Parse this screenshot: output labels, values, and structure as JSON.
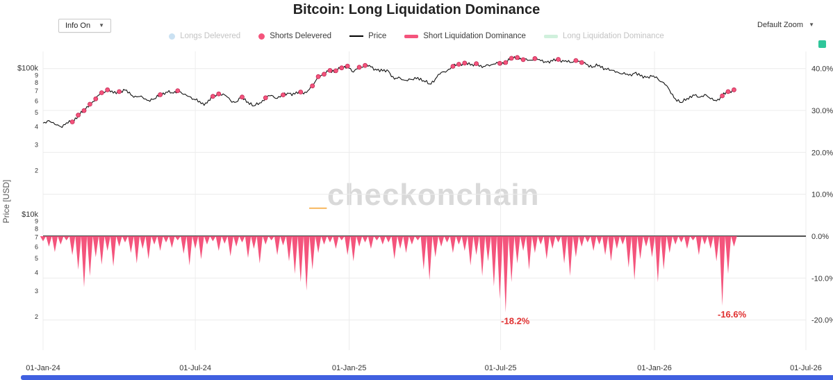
{
  "title": "Bitcoin: Long Liquidation Dominance",
  "controls": {
    "info_label": "Info On",
    "zoom_label": "Default Zoom",
    "caret": "▼"
  },
  "watermark": {
    "prefix": "_",
    "text": "checkonchain"
  },
  "colors": {
    "accent_pink": "#f4547c",
    "price_line": "#111111",
    "annotation_red": "#e02f2f",
    "longs_blue": "#9ec9e8",
    "long_dom_green": "#a9e3bf",
    "range_slider_blue": "#4060e0",
    "watermark_gray": "#d9d9d9",
    "watermark_orange": "#f5a83b",
    "brand_teal": "#2fc69a",
    "gridline": "#ececec"
  },
  "legend": {
    "items": [
      {
        "label": "Longs Delevered",
        "glyph": "dot",
        "color": "#9ec9e8",
        "enabled": false
      },
      {
        "label": "Shorts Delevered",
        "glyph": "dot",
        "color": "#f4547c",
        "enabled": true
      },
      {
        "label": "Price",
        "glyph": "line",
        "color": "#000000",
        "enabled": true
      },
      {
        "label": "Short Liquidation Dominance",
        "glyph": "thick-line",
        "color": "#f4547c",
        "enabled": true
      },
      {
        "label": "Long Liquidation Dominance",
        "glyph": "thick-line",
        "color": "#a9e3bf",
        "enabled": false
      }
    ]
  },
  "chart_data": {
    "type": "line",
    "title": "Bitcoin: Long Liquidation Dominance",
    "x_start": "2024-01-01",
    "x_interval_days": 7,
    "x_axis": {
      "span_days": 912,
      "tick_days": [
        0,
        182,
        366,
        547,
        731,
        912
      ],
      "tick_labels": [
        "01-Jan-24",
        "01-Jul-24",
        "01-Jan-25",
        "01-Jul-25",
        "01-Jan-26",
        "01-Jul-26"
      ]
    },
    "left_axis": {
      "label": "Price [USD]",
      "scale": "log",
      "domain_usd": [
        1180,
        131000
      ],
      "tick_values_kusd": [
        100,
        90,
        80,
        70,
        60,
        50,
        40,
        30,
        20,
        10,
        9,
        8,
        7,
        6,
        5,
        4,
        3,
        2
      ],
      "tick_labels": [
        "$100k",
        "9",
        "8",
        "7",
        "6",
        "5",
        "4",
        "3",
        "2",
        "$10k",
        "9",
        "8",
        "7",
        "6",
        "5",
        "4",
        "3",
        "2"
      ]
    },
    "right_axis": {
      "domain": [
        -27.2,
        44.1
      ],
      "tick_values": [
        40,
        30,
        20,
        10,
        0,
        -10,
        -20
      ],
      "tick_labels": [
        "40.0%",
        "30.0%",
        "20.0%",
        "10.0%",
        "0.0%",
        "-10.0%",
        "-20.0%"
      ]
    },
    "series": [
      {
        "name": "Price",
        "type": "line",
        "axis": "left",
        "unit": "kUSD",
        "color": "#111111",
        "values": [
          42.3,
          44.0,
          41.5,
          40.0,
          42.5,
          43.1,
          48.0,
          51.5,
          57.0,
          62.0,
          68.3,
          71.5,
          67.9,
          69.5,
          71.0,
          66.0,
          64.0,
          63.5,
          60.5,
          62.0,
          66.2,
          69.0,
          68.3,
          70.5,
          66.5,
          64.3,
          61.0,
          57.5,
          58.0,
          64.5,
          67.0,
          66.0,
          60.5,
          59.0,
          63.8,
          59.0,
          55.5,
          58.2,
          63.0,
          65.5,
          62.5,
          66.0,
          67.5,
          66.8,
          69.0,
          68.5,
          76.0,
          88.0,
          91.5,
          97.0,
          96.5,
          101.0,
          104.0,
          94.5,
          102.0,
          105.0,
          102.5,
          97.5,
          96.2,
          96.0,
          84.5,
          86.0,
          83.0,
          84.2,
          87.0,
          82.5,
          78.5,
          85.0,
          94.0,
          96.5,
          103.5,
          107.0,
          109.0,
          105.5,
          108.0,
          101.5,
          106.0,
          107.5,
          108.5,
          110.0,
          117.5,
          119.0,
          115.0,
          114.0,
          117.0,
          113.0,
          110.5,
          112.5,
          115.5,
          112.0,
          110.0,
          113.5,
          110.0,
          106.5,
          103.0,
          105.5,
          100.0,
          97.5,
          95.0,
          92.0,
          90.0,
          93.0,
          89.0,
          87.0,
          88.5,
          85.0,
          80.0,
          71.0,
          62.0,
          58.5,
          62.5,
          66.0,
          63.5,
          66.5,
          62.0,
          60.0,
          65.0,
          69.5,
          71.5
        ]
      },
      {
        "name": "Short Liquidation Dominance",
        "type": "spike-area",
        "axis": "right",
        "unit": "%",
        "color": "#f4547c",
        "values": [
          -1.2,
          -2.5,
          -3.8,
          -2.0,
          -1.0,
          -4.5,
          -8.0,
          -12.2,
          -9.5,
          -5.0,
          -6.8,
          -3.5,
          -7.2,
          -2.5,
          -1.5,
          -4.0,
          -6.5,
          -3.0,
          -5.5,
          -2.0,
          -3.5,
          -1.5,
          -2.8,
          -1.0,
          -4.2,
          -7.0,
          -3.0,
          -5.5,
          -2.0,
          -1.2,
          -3.5,
          -1.8,
          -4.8,
          -2.5,
          -1.5,
          -5.2,
          -3.0,
          -6.5,
          -2.0,
          -1.0,
          -4.5,
          -2.2,
          -6.0,
          -9.0,
          -11.0,
          -13.0,
          -8.0,
          -4.0,
          -2.0,
          -1.5,
          -3.0,
          -1.0,
          -4.5,
          -6.0,
          -2.5,
          -1.5,
          -3.0,
          -1.0,
          -2.0,
          -1.5,
          -5.5,
          -3.0,
          -4.0,
          -2.0,
          -1.0,
          -8.0,
          -10.5,
          -5.0,
          -2.5,
          -1.5,
          -4.0,
          -2.0,
          -3.5,
          -7.0,
          -4.5,
          -9.5,
          -6.0,
          -12.0,
          -15.0,
          -18.2,
          -11.0,
          -6.5,
          -3.5,
          -8.0,
          -4.0,
          -2.0,
          -5.5,
          -3.0,
          -1.5,
          -6.5,
          -9.5,
          -5.0,
          -2.5,
          -1.5,
          -3.5,
          -2.0,
          -4.5,
          -6.0,
          -3.0,
          -2.0,
          -7.5,
          -10.5,
          -5.5,
          -2.5,
          -5.0,
          -11.0,
          -8.0,
          -4.0,
          -2.0,
          -1.5,
          -3.0,
          -1.0,
          -4.5,
          -2.0,
          -3.0,
          -6.0,
          -16.6,
          -9.0,
          -2.5
        ]
      },
      {
        "name": "Shorts Delevered",
        "type": "markers",
        "axis": "left",
        "color": "#f4547c",
        "indices": [
          5,
          6,
          7,
          8,
          9,
          10,
          11,
          13,
          20,
          23,
          29,
          30,
          34,
          38,
          41,
          44,
          46,
          47,
          48,
          49,
          50,
          51,
          52,
          54,
          55,
          70,
          71,
          72,
          74,
          78,
          79,
          80,
          81,
          82,
          84,
          88,
          91,
          92,
          116,
          117,
          118
        ]
      },
      {
        "name": "Longs Delevered",
        "type": "markers",
        "axis": "left",
        "color": "#9ec9e8",
        "indices": [],
        "hidden": true
      },
      {
        "name": "Long Liquidation Dominance",
        "type": "spike-area",
        "axis": "right",
        "color": "#a9e3bf",
        "values": [],
        "hidden": true
      }
    ],
    "annotations": [
      {
        "text": "-18.2%",
        "day": 553,
        "value": -18.2,
        "color": "#e02f2f"
      },
      {
        "text": "-16.6%",
        "day": 812,
        "value": -16.6,
        "color": "#e02f2f"
      }
    ]
  }
}
